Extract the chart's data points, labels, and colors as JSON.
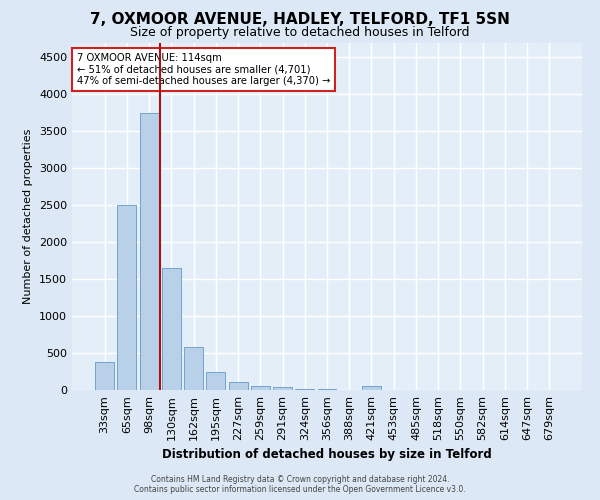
{
  "title": "7, OXMOOR AVENUE, HADLEY, TELFORD, TF1 5SN",
  "subtitle": "Size of property relative to detached houses in Telford",
  "xlabel": "Distribution of detached houses by size in Telford",
  "ylabel": "Number of detached properties",
  "footer_line1": "Contains HM Land Registry data © Crown copyright and database right 2024.",
  "footer_line2": "Contains public sector information licensed under the Open Government Licence v3.0.",
  "categories": [
    "33sqm",
    "65sqm",
    "98sqm",
    "130sqm",
    "162sqm",
    "195sqm",
    "227sqm",
    "259sqm",
    "291sqm",
    "324sqm",
    "356sqm",
    "388sqm",
    "421sqm",
    "453sqm",
    "485sqm",
    "518sqm",
    "550sqm",
    "582sqm",
    "614sqm",
    "647sqm",
    "679sqm"
  ],
  "values": [
    380,
    2500,
    3750,
    1650,
    580,
    240,
    110,
    60,
    35,
    20,
    10,
    5,
    50,
    5,
    0,
    0,
    0,
    0,
    0,
    0,
    0
  ],
  "bar_color": "#b8d0e8",
  "bar_edge_color": "#6699cc",
  "highlight_index": 2,
  "highlight_color": "#aa1111",
  "annotation_text": "7 OXMOOR AVENUE: 114sqm\n← 51% of detached houses are smaller (4,701)\n47% of semi-detached houses are larger (4,370) →",
  "annotation_box_color": "#ffffff",
  "annotation_box_edge": "#cc2222",
  "bg_color": "#dce8f5",
  "plot_bg_color": "#e4eef8",
  "grid_color": "#ffffff",
  "ylim": [
    0,
    4700
  ],
  "yticks": [
    0,
    500,
    1000,
    1500,
    2000,
    2500,
    3000,
    3500,
    4000,
    4500
  ],
  "title_fontsize": 11,
  "subtitle_fontsize": 9
}
